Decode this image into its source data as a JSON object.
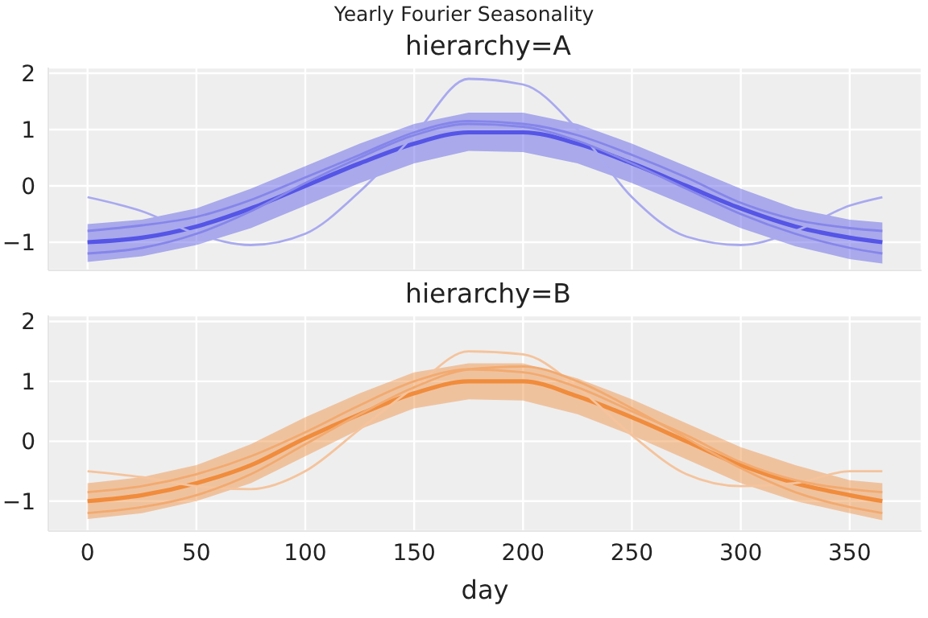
{
  "chart_data": [
    {
      "type": "line",
      "title": "Yearly Fourier Seasonality",
      "subtitle": "hierarchy=A",
      "x": [
        0,
        25,
        50,
        75,
        100,
        125,
        150,
        175,
        200,
        225,
        250,
        275,
        300,
        325,
        350,
        365
      ],
      "xlim": [
        -18,
        383
      ],
      "xticks": [
        0,
        50,
        100,
        150,
        200,
        250,
        300,
        350
      ],
      "ylim": [
        -1.5,
        2.1
      ],
      "yticks": [
        -1,
        0,
        1,
        2
      ],
      "grid": true,
      "legend": false,
      "tick_labels": "y",
      "series": [
        {
          "color": "#5555e6",
          "values": [
            -1,
            -0.92,
            -0.72,
            -0.4,
            0.0,
            0.4,
            0.75,
            0.95,
            0.95,
            0.75,
            0.4,
            0.0,
            -0.4,
            -0.72,
            -0.92,
            -1
          ],
          "lower": [
            -1.35,
            -1.25,
            -1.05,
            -0.75,
            -0.35,
            0.05,
            0.4,
            0.62,
            0.6,
            0.4,
            0.05,
            -0.35,
            -0.75,
            -1.07,
            -1.3,
            -1.38
          ],
          "upper": [
            -0.68,
            -0.6,
            -0.4,
            -0.05,
            0.35,
            0.75,
            1.1,
            1.3,
            1.3,
            1.1,
            0.75,
            0.35,
            -0.05,
            -0.4,
            -0.6,
            -0.65
          ]
        },
        {
          "color": "#a9a9ef",
          "values": [
            -0.2,
            -0.45,
            -0.85,
            -1.05,
            -0.85,
            -0.1,
            0.9,
            1.9,
            1.8,
            1.0,
            -0.2,
            -0.9,
            -1.05,
            -0.8,
            -0.35,
            -0.2
          ]
        },
        {
          "color": "#8585ea",
          "values": [
            -1.2,
            -1.1,
            -0.85,
            -0.45,
            0.05,
            0.5,
            0.9,
            1.1,
            1.05,
            0.8,
            0.4,
            -0.05,
            -0.5,
            -0.85,
            -1.1,
            -1.2
          ]
        },
        {
          "color": "#8585ea",
          "values": [
            -0.8,
            -0.7,
            -0.55,
            -0.25,
            0.15,
            0.55,
            0.95,
            1.15,
            1.1,
            0.9,
            0.55,
            0.15,
            -0.3,
            -0.6,
            -0.75,
            -0.8
          ]
        }
      ]
    },
    {
      "type": "line",
      "title": "hierarchy=B",
      "xlabel": "day",
      "x": [
        0,
        25,
        50,
        75,
        100,
        125,
        150,
        175,
        200,
        225,
        250,
        275,
        300,
        325,
        350,
        365
      ],
      "xlim": [
        -18,
        383
      ],
      "xticks": [
        0,
        50,
        100,
        150,
        200,
        250,
        300,
        350
      ],
      "ylim": [
        -1.5,
        2.1
      ],
      "yticks": [
        -1,
        0,
        1,
        2
      ],
      "grid": true,
      "legend": false,
      "series": [
        {
          "color": "#f08c3c",
          "values": [
            -1,
            -0.9,
            -0.7,
            -0.4,
            0.05,
            0.45,
            0.8,
            1.0,
            1.0,
            0.75,
            0.4,
            0.0,
            -0.4,
            -0.7,
            -0.9,
            -1
          ],
          "lower": [
            -1.3,
            -1.2,
            -1.0,
            -0.7,
            -0.25,
            0.2,
            0.55,
            0.7,
            0.68,
            0.45,
            0.1,
            -0.3,
            -0.7,
            -1.0,
            -1.2,
            -1.32
          ],
          "upper": [
            -0.7,
            -0.6,
            -0.4,
            -0.05,
            0.4,
            0.8,
            1.15,
            1.3,
            1.3,
            1.05,
            0.7,
            0.3,
            -0.1,
            -0.4,
            -0.65,
            -0.7
          ]
        },
        {
          "color": "#f5c39c",
          "values": [
            -0.5,
            -0.6,
            -0.75,
            -0.8,
            -0.5,
            0.2,
            0.9,
            1.5,
            1.45,
            0.9,
            0.1,
            -0.55,
            -0.75,
            -0.7,
            -0.5,
            -0.5
          ]
        },
        {
          "color": "#f2aa70",
          "values": [
            -1.2,
            -1.1,
            -0.9,
            -0.55,
            -0.05,
            0.45,
            0.9,
            1.2,
            1.25,
            1.0,
            0.55,
            0.05,
            -0.45,
            -0.85,
            -1.1,
            -1.2
          ]
        },
        {
          "color": "#f2aa70",
          "values": [
            -0.85,
            -0.75,
            -0.55,
            -0.25,
            0.15,
            0.6,
            1.0,
            1.2,
            1.15,
            0.9,
            0.5,
            0.1,
            -0.35,
            -0.65,
            -0.8,
            -0.85
          ]
        }
      ]
    }
  ]
}
